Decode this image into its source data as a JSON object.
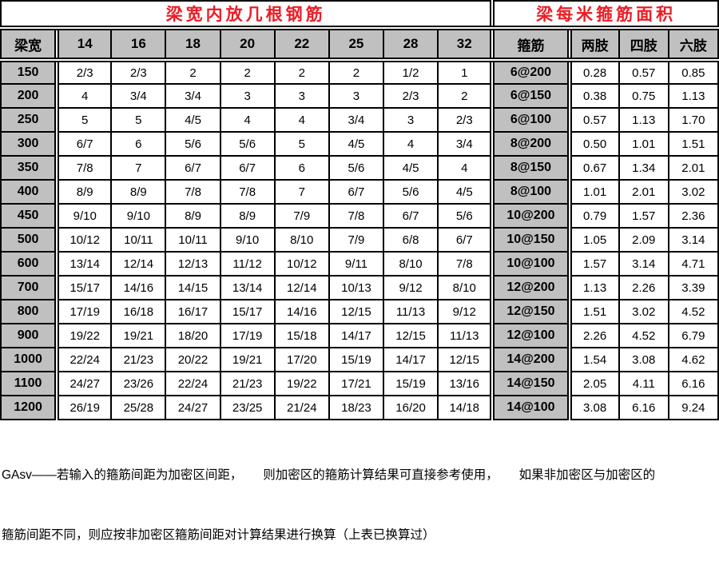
{
  "title_left": "梁宽内放几根钢筋",
  "title_right": "梁每米箍筋面积",
  "columns": [
    "梁宽",
    "14",
    "16",
    "18",
    "20",
    "22",
    "25",
    "28",
    "32",
    "箍筋",
    "两肢",
    "四肢",
    "六肢"
  ],
  "rows": [
    {
      "width": "150",
      "bars": [
        "2/3",
        "2/3",
        "2",
        "2",
        "2",
        "2",
        "1/2",
        "1"
      ],
      "stirrup": "6@200",
      "areas": [
        "0.28",
        "0.57",
        "0.85"
      ]
    },
    {
      "width": "200",
      "bars": [
        "4",
        "3/4",
        "3/4",
        "3",
        "3",
        "3",
        "2/3",
        "2"
      ],
      "stirrup": "6@150",
      "areas": [
        "0.38",
        "0.75",
        "1.13"
      ]
    },
    {
      "width": "250",
      "bars": [
        "5",
        "5",
        "4/5",
        "4",
        "4",
        "3/4",
        "3",
        "2/3"
      ],
      "stirrup": "6@100",
      "areas": [
        "0.57",
        "1.13",
        "1.70"
      ]
    },
    {
      "width": "300",
      "bars": [
        "6/7",
        "6",
        "5/6",
        "5/6",
        "5",
        "4/5",
        "4",
        "3/4"
      ],
      "stirrup": "8@200",
      "areas": [
        "0.50",
        "1.01",
        "1.51"
      ]
    },
    {
      "width": "350",
      "bars": [
        "7/8",
        "7",
        "6/7",
        "6/7",
        "6",
        "5/6",
        "4/5",
        "4"
      ],
      "stirrup": "8@150",
      "areas": [
        "0.67",
        "1.34",
        "2.01"
      ]
    },
    {
      "width": "400",
      "bars": [
        "8/9",
        "8/9",
        "7/8",
        "7/8",
        "7",
        "6/7",
        "5/6",
        "4/5"
      ],
      "stirrup": "8@100",
      "areas": [
        "1.01",
        "2.01",
        "3.02"
      ]
    },
    {
      "width": "450",
      "bars": [
        "9/10",
        "9/10",
        "8/9",
        "8/9",
        "7/9",
        "7/8",
        "6/7",
        "5/6"
      ],
      "stirrup": "10@200",
      "areas": [
        "0.79",
        "1.57",
        "2.36"
      ]
    },
    {
      "width": "500",
      "bars": [
        "10/12",
        "10/11",
        "10/11",
        "9/10",
        "8/10",
        "7/9",
        "6/8",
        "6/7"
      ],
      "stirrup": "10@150",
      "areas": [
        "1.05",
        "2.09",
        "3.14"
      ]
    },
    {
      "width": "600",
      "bars": [
        "13/14",
        "12/14",
        "12/13",
        "11/12",
        "10/12",
        "9/11",
        "8/10",
        "7/8"
      ],
      "stirrup": "10@100",
      "areas": [
        "1.57",
        "3.14",
        "4.71"
      ]
    },
    {
      "width": "700",
      "bars": [
        "15/17",
        "14/16",
        "14/15",
        "13/14",
        "12/14",
        "10/13",
        "9/12",
        "8/10"
      ],
      "stirrup": "12@200",
      "areas": [
        "1.13",
        "2.26",
        "3.39"
      ]
    },
    {
      "width": "800",
      "bars": [
        "17/19",
        "16/18",
        "16/17",
        "15/17",
        "14/16",
        "12/15",
        "11/13",
        "9/12"
      ],
      "stirrup": "12@150",
      "areas": [
        "1.51",
        "3.02",
        "4.52"
      ]
    },
    {
      "width": "900",
      "bars": [
        "19/22",
        "19/21",
        "18/20",
        "17/19",
        "15/18",
        "14/17",
        "12/15",
        "11/13"
      ],
      "stirrup": "12@100",
      "areas": [
        "2.26",
        "4.52",
        "6.79"
      ]
    },
    {
      "width": "1000",
      "bars": [
        "22/24",
        "21/23",
        "20/22",
        "19/21",
        "17/20",
        "15/19",
        "14/17",
        "12/15"
      ],
      "stirrup": "14@200",
      "areas": [
        "1.54",
        "3.08",
        "4.62"
      ]
    },
    {
      "width": "1100",
      "bars": [
        "24/27",
        "23/26",
        "22/24",
        "21/23",
        "19/22",
        "17/21",
        "15/19",
        "13/16"
      ],
      "stirrup": "14@150",
      "areas": [
        "2.05",
        "4.11",
        "6.16"
      ]
    },
    {
      "width": "1200",
      "bars": [
        "26/19",
        "25/28",
        "24/27",
        "23/25",
        "21/24",
        "18/23",
        "16/20",
        "14/18"
      ],
      "stirrup": "14@100",
      "areas": [
        "3.08",
        "6.16",
        "9.24"
      ]
    }
  ],
  "footer_line1": "GAsv——若输入的箍筋间距为加密区间距，      则加密区的箍筋计算结果可直接参考使用，      如果非加密区与加密区的",
  "footer_line2": "箍筋间距不同，则应按非加密区箍筋间距对计算结果进行换算（上表已换算过）"
}
